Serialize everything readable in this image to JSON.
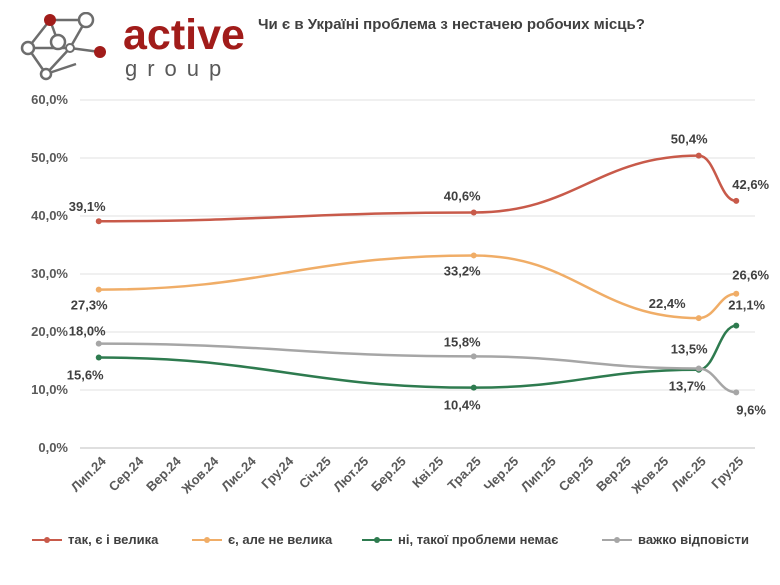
{
  "header": {
    "logo_word": "active",
    "logo_sub": "group",
    "title": "Чи є в Україні проблема з нестачею робочих місць?"
  },
  "colors": {
    "logo_red": "#a11c1a",
    "logo_gray": "#6d6d6d"
  },
  "chart_data": {
    "type": "line",
    "title": "Чи є в Україні проблема з нестачею робочих місць?",
    "categories": [
      "Лип.24",
      "Сер.24",
      "Вер.24",
      "Жов.24",
      "Лис.24",
      "Гру.24",
      "Січ.25",
      "Лют.25",
      "Бер.25",
      "Кві.25",
      "Тра.25",
      "Чер.25",
      "Лип.25",
      "Сер.25",
      "Вер.25",
      "Жов.25",
      "Лис.25",
      "Гру.25"
    ],
    "ylim": [
      0,
      60
    ],
    "yticks": [
      "0,0%",
      "10,0%",
      "20,0%",
      "30,0%",
      "40,0%",
      "50,0%",
      "60,0%"
    ],
    "grid": true,
    "legend_position": "bottom",
    "series": [
      {
        "name": "так, є і велика",
        "color": "#c85a4a",
        "points": [
          {
            "x": "Лип.24",
            "y": 39.1,
            "label": "39,1%"
          },
          {
            "x": "Тра.25",
            "y": 40.6,
            "label": "40,6%"
          },
          {
            "x": "Лис.25",
            "y": 50.4,
            "label": "50,4%"
          },
          {
            "x": "Гру.25",
            "y": 42.6,
            "label": "42,6%"
          }
        ]
      },
      {
        "name": "є, але не велика",
        "color": "#f0ad67",
        "points": [
          {
            "x": "Лип.24",
            "y": 27.3,
            "label": "27,3%"
          },
          {
            "x": "Тра.25",
            "y": 33.2,
            "label": "33,2%"
          },
          {
            "x": "Лис.25",
            "y": 22.4,
            "label": "22,4%"
          },
          {
            "x": "Гру.25",
            "y": 26.6,
            "label": "26,6%"
          }
        ]
      },
      {
        "name": "ні, такої проблеми немає",
        "color": "#2e7b4f",
        "points": [
          {
            "x": "Лип.24",
            "y": 15.6,
            "label": "15,6%"
          },
          {
            "x": "Тра.25",
            "y": 10.4,
            "label": "10,4%"
          },
          {
            "x": "Лис.25",
            "y": 13.5,
            "label": "13,5%"
          },
          {
            "x": "Гру.25",
            "y": 21.1,
            "label": "21,1%"
          }
        ]
      },
      {
        "name": "важко відповісти",
        "color": "#a6a6a6",
        "points": [
          {
            "x": "Лип.24",
            "y": 18.0,
            "label": "18,0%"
          },
          {
            "x": "Тра.25",
            "y": 15.8,
            "label": "15,8%"
          },
          {
            "x": "Лис.25",
            "y": 13.7,
            "label": "13,7%"
          },
          {
            "x": "Гру.25",
            "y": 9.6,
            "label": "9,6%"
          }
        ]
      }
    ]
  }
}
